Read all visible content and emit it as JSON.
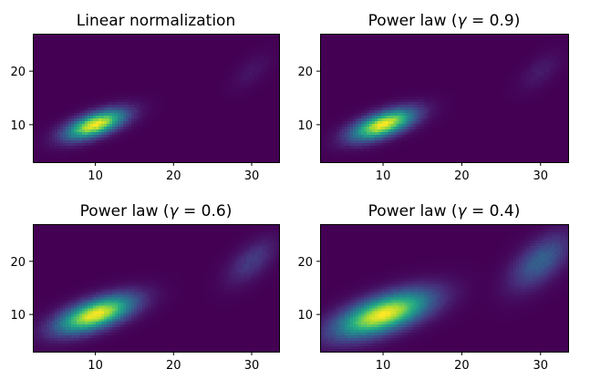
{
  "chart_data": [
    {
      "type": "heatmap",
      "title": "Linear normalization",
      "gamma": 1.0,
      "colormap": "viridis",
      "xlim": [
        2,
        33.5
      ],
      "ylim": [
        3,
        27
      ],
      "xticks": [
        "10",
        "20",
        "30"
      ],
      "yticks": [
        "10",
        "20"
      ],
      "clusters": [
        {
          "center": [
            10,
            10
          ],
          "sigma": [
            2.5,
            1.8
          ],
          "rho": 0.6,
          "weight": 1.0
        },
        {
          "center": [
            30,
            20
          ],
          "sigma": [
            1.6,
            2.2
          ],
          "rho": 0.6,
          "weight": 0.055
        }
      ]
    },
    {
      "type": "heatmap",
      "title_prefix": "Power law (",
      "title_math": "γ",
      "title_suffix": " = 0.9)",
      "gamma": 0.9,
      "colormap": "viridis",
      "xlim": [
        2,
        33.5
      ],
      "ylim": [
        3,
        27
      ],
      "xticks": [
        "10",
        "20",
        "30"
      ],
      "yticks": [
        "10",
        "20"
      ],
      "clusters": [
        {
          "center": [
            10,
            10
          ],
          "sigma": [
            2.5,
            1.8
          ],
          "rho": 0.6,
          "weight": 1.0
        },
        {
          "center": [
            30,
            20
          ],
          "sigma": [
            1.6,
            2.2
          ],
          "rho": 0.6,
          "weight": 0.055
        }
      ]
    },
    {
      "type": "heatmap",
      "title_prefix": "Power law (",
      "title_math": "γ",
      "title_suffix": " = 0.6)",
      "gamma": 0.6,
      "colormap": "viridis",
      "xlim": [
        2,
        33.5
      ],
      "ylim": [
        3,
        27
      ],
      "xticks": [
        "10",
        "20",
        "30"
      ],
      "yticks": [
        "10",
        "20"
      ],
      "clusters": [
        {
          "center": [
            10,
            10
          ],
          "sigma": [
            2.5,
            1.8
          ],
          "rho": 0.6,
          "weight": 1.0
        },
        {
          "center": [
            30,
            20
          ],
          "sigma": [
            1.6,
            2.2
          ],
          "rho": 0.6,
          "weight": 0.055
        }
      ]
    },
    {
      "type": "heatmap",
      "title_prefix": "Power law (",
      "title_math": "γ",
      "title_suffix": " = 0.4)",
      "gamma": 0.4,
      "colormap": "viridis",
      "xlim": [
        2,
        33.5
      ],
      "ylim": [
        3,
        27
      ],
      "xticks": [
        "10",
        "20",
        "30"
      ],
      "yticks": [
        "10",
        "20"
      ],
      "clusters": [
        {
          "center": [
            10,
            10
          ],
          "sigma": [
            2.5,
            1.8
          ],
          "rho": 0.6,
          "weight": 1.0
        },
        {
          "center": [
            30,
            20
          ],
          "sigma": [
            1.6,
            2.2
          ],
          "rho": 0.6,
          "weight": 0.055
        }
      ]
    }
  ]
}
